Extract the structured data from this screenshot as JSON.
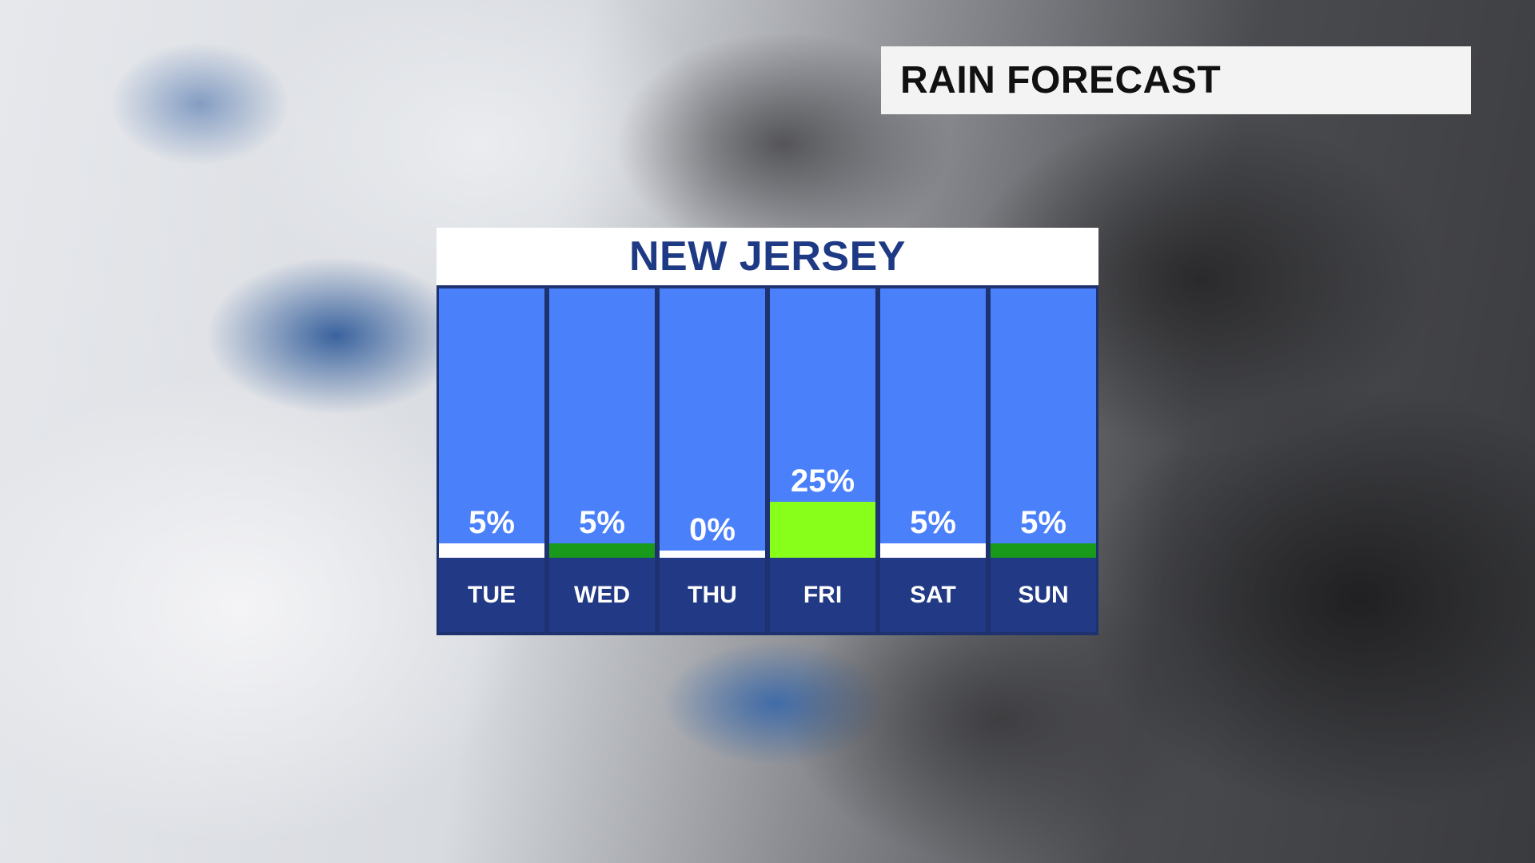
{
  "header": {
    "title": "RAIN FORECAST"
  },
  "panel": {
    "title": "NEW JERSEY"
  },
  "colors": {
    "background_blue": "#4a80fa",
    "day_label_bg": "#223a85",
    "low_white": "#ffffff",
    "low_green": "#1a9a1a",
    "high_lime": "#88ff1a"
  },
  "chart_data": {
    "type": "bar",
    "title": "NEW JERSEY",
    "categories": [
      "TUE",
      "WED",
      "THU",
      "FRI",
      "SAT",
      "SUN"
    ],
    "values": [
      5,
      5,
      0,
      25,
      5,
      5
    ],
    "labels": [
      "5%",
      "5%",
      "0%",
      "25%",
      "5%",
      "5%"
    ],
    "bar_colors": [
      "#ffffff",
      "#1a9a1a",
      "#ffffff",
      "#88ff1a",
      "#ffffff",
      "#1a9a1a"
    ],
    "unit": "%",
    "ylim": [
      0,
      100
    ],
    "grid": false,
    "legend": "none"
  }
}
